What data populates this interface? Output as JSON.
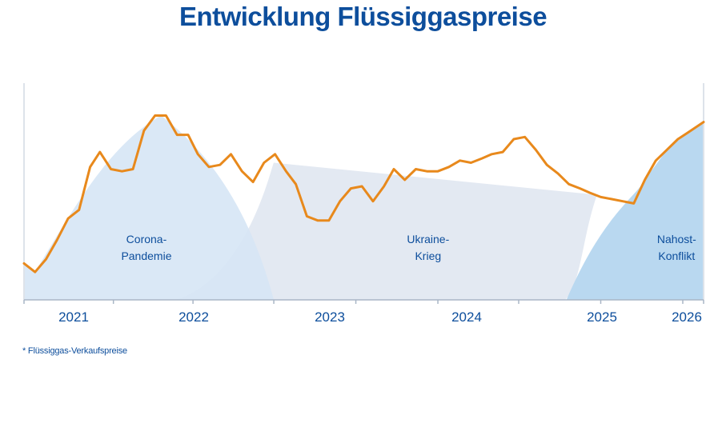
{
  "title": "Entwicklung Flüssiggaspreise",
  "footnote": "* Flüssiggas-Verkaufspreise",
  "colors": {
    "line": "#e8891c",
    "corona_area": "#d6e6f5",
    "ukraine_area": "#e3e9f2",
    "nahost_area": "#b9d8f0",
    "axis": "#dde3ea",
    "text": "#0d4e9c"
  },
  "chart_data": {
    "type": "line",
    "title": "Entwicklung Flüssiggaspreise",
    "xlabel": "",
    "ylabel": "",
    "grid": false,
    "year_labels": [
      "2021",
      "2022",
      "2023",
      "2024",
      "2025",
      "2026"
    ],
    "x_range": [
      2020.62,
      2026.17
    ],
    "y_range": [
      0,
      100
    ],
    "y_axis_labels_shown": false,
    "series": [
      {
        "values": [
          [
            2020.62,
            17
          ],
          [
            2020.71,
            13
          ],
          [
            2020.8,
            19
          ],
          [
            2020.89,
            28
          ],
          [
            2020.98,
            38
          ],
          [
            2021.07,
            42
          ],
          [
            2021.16,
            62
          ],
          [
            2021.24,
            69
          ],
          [
            2021.33,
            61
          ],
          [
            2021.42,
            60
          ],
          [
            2021.51,
            61
          ],
          [
            2021.6,
            79
          ],
          [
            2021.69,
            86
          ],
          [
            2021.78,
            86
          ],
          [
            2021.87,
            77
          ],
          [
            2021.96,
            77
          ],
          [
            2022.04,
            68
          ],
          [
            2022.13,
            62
          ],
          [
            2022.22,
            63
          ],
          [
            2022.31,
            68
          ],
          [
            2022.4,
            60
          ],
          [
            2022.49,
            55
          ],
          [
            2022.58,
            64
          ],
          [
            2022.67,
            68
          ],
          [
            2022.76,
            60
          ],
          [
            2022.84,
            54
          ],
          [
            2022.93,
            39
          ],
          [
            2023.02,
            37
          ],
          [
            2023.11,
            37
          ],
          [
            2023.2,
            46
          ],
          [
            2023.29,
            52
          ],
          [
            2023.38,
            53
          ],
          [
            2023.47,
            46
          ],
          [
            2023.56,
            53
          ],
          [
            2023.64,
            61
          ],
          [
            2023.73,
            56
          ],
          [
            2023.82,
            61
          ],
          [
            2023.91,
            60
          ],
          [
            2024.0,
            60
          ],
          [
            2024.09,
            62
          ],
          [
            2024.18,
            65
          ],
          [
            2024.27,
            64
          ],
          [
            2024.36,
            66
          ],
          [
            2024.44,
            68
          ],
          [
            2024.53,
            69
          ],
          [
            2024.62,
            75
          ],
          [
            2024.71,
            76
          ],
          [
            2024.8,
            70
          ],
          [
            2024.89,
            63
          ],
          [
            2024.98,
            59
          ],
          [
            2025.07,
            54
          ],
          [
            2025.16,
            52
          ],
          [
            2025.24,
            50
          ],
          [
            2025.33,
            48
          ],
          [
            2025.42,
            47
          ],
          [
            2025.51,
            46
          ],
          [
            2025.6,
            45
          ],
          [
            2025.69,
            56
          ],
          [
            2025.78,
            65
          ],
          [
            2025.87,
            70
          ],
          [
            2025.96,
            75
          ],
          [
            2026.04,
            78
          ],
          [
            2026.17,
            83
          ]
        ]
      }
    ],
    "annotations": [
      {
        "label_line1": "Corona-",
        "label_line2": "Pandemie",
        "center_x": 2021.62,
        "start_x": 2020.62,
        "end_x": 2022.66
      },
      {
        "label_line1": "Ukraine-",
        "label_line2": "Krieg",
        "center_x": 2023.92,
        "start_x": 2021.86,
        "end_x": 2025.04
      },
      {
        "label_line1": "Nahost-",
        "label_line2": "Konflikt",
        "center_x": 2025.95,
        "start_x": 2025.05,
        "end_x": 2026.17
      }
    ]
  }
}
